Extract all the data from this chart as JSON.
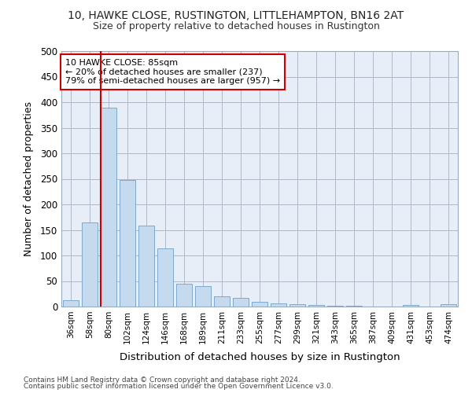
{
  "title1": "10, HAWKE CLOSE, RUSTINGTON, LITTLEHAMPTON, BN16 2AT",
  "title2": "Size of property relative to detached houses in Rustington",
  "xlabel": "Distribution of detached houses by size in Rustington",
  "ylabel": "Number of detached properties",
  "categories": [
    "36sqm",
    "58sqm",
    "80sqm",
    "102sqm",
    "124sqm",
    "146sqm",
    "168sqm",
    "189sqm",
    "211sqm",
    "233sqm",
    "255sqm",
    "277sqm",
    "299sqm",
    "321sqm",
    "343sqm",
    "365sqm",
    "387sqm",
    "409sqm",
    "431sqm",
    "453sqm",
    "474sqm"
  ],
  "values": [
    13,
    165,
    390,
    248,
    158,
    114,
    45,
    40,
    20,
    17,
    10,
    6,
    5,
    3,
    2,
    1,
    0,
    0,
    3,
    0,
    5
  ],
  "bar_color": "#c5d9ef",
  "bar_edge_color": "#6fa0c8",
  "highlight_bar_index": 2,
  "highlight_line_color": "#cc0000",
  "annotation_text": "10 HAWKE CLOSE: 85sqm\n← 20% of detached houses are smaller (237)\n79% of semi-detached houses are larger (957) →",
  "annotation_box_color": "#ffffff",
  "annotation_box_edge": "#cc0000",
  "ylim": [
    0,
    500
  ],
  "yticks": [
    0,
    50,
    100,
    150,
    200,
    250,
    300,
    350,
    400,
    450,
    500
  ],
  "footer1": "Contains HM Land Registry data © Crown copyright and database right 2024.",
  "footer2": "Contains public sector information licensed under the Open Government Licence v3.0.",
  "bg_color": "#ffffff",
  "plot_bg_color": "#e8eef7",
  "grid_color": "#b0b8c8"
}
